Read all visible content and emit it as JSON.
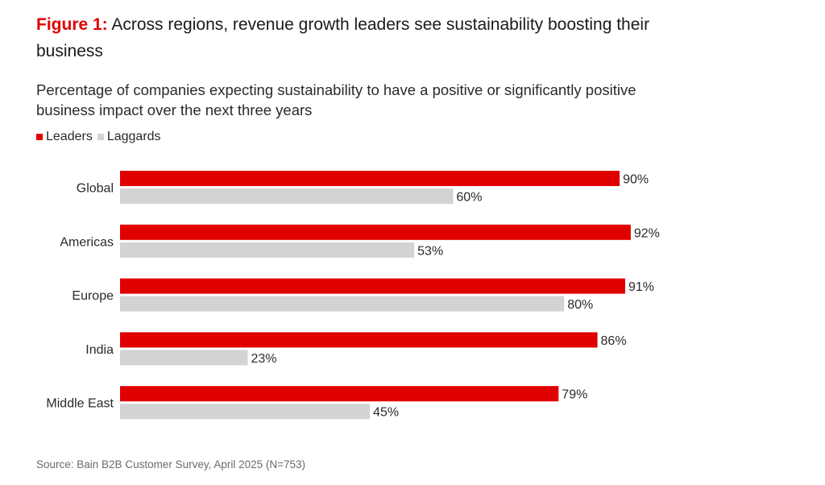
{
  "chart_data": {
    "type": "bar",
    "orientation": "horizontal",
    "title_prefix": "Figure 1:",
    "title": "Across regions, revenue growth leaders see sustainability boosting their business",
    "subtitle": "Percentage of companies expecting sustainability to have a positive or significantly positive business impact over the next three years",
    "categories": [
      "Global",
      "Americas",
      "Europe",
      "India",
      "Middle East"
    ],
    "series": [
      {
        "name": "Leaders",
        "color": "#e00000",
        "values": [
          90,
          92,
          91,
          86,
          79
        ],
        "labels": [
          "90%",
          "92%",
          "91%",
          "86%",
          "79%"
        ]
      },
      {
        "name": "Laggards",
        "color": "#d3d3d3",
        "values": [
          60,
          53,
          80,
          23,
          45
        ],
        "labels": [
          "60%",
          "53%",
          "80%",
          "23%",
          "45%"
        ]
      }
    ],
    "xlim": [
      0,
      100
    ],
    "unit": "%",
    "grid": false,
    "legend_position": "top-left",
    "source": "Source: Bain B2B Customer Survey, April 2025 (N=753)"
  }
}
